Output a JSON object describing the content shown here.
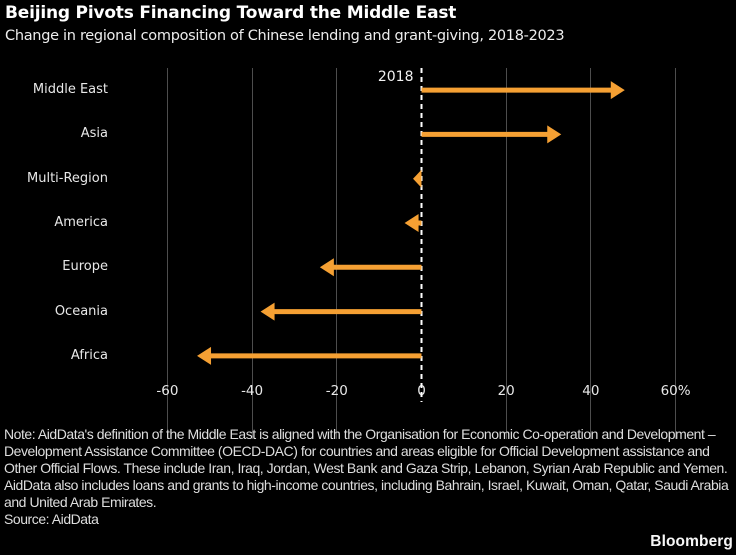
{
  "header": {
    "title": "Beijing Pivots Financing Toward the Middle East",
    "subtitle": "Change in regional composition of Chinese lending and grant-giving, 2018-2023"
  },
  "chart_data": {
    "type": "bar",
    "variant": "horizontal-arrows-from-baseline",
    "categories": [
      "Middle East",
      "Asia",
      "Multi-Region",
      "America",
      "Europe",
      "Oceania",
      "Africa"
    ],
    "values": [
      48,
      33,
      -2,
      -4,
      -24,
      -38,
      -53
    ],
    "unit": "percentage points",
    "baseline_label": "2018",
    "x_ticks": [
      -60,
      -40,
      -20,
      0,
      20,
      40,
      60
    ],
    "x_tick_labels": [
      "-60",
      "-40",
      "-20",
      "0",
      "20",
      "40",
      "60%"
    ],
    "xlim": [
      -72,
      72
    ],
    "grid": "vertical",
    "legend": "none",
    "colors": {
      "background": "#000000",
      "arrow": "#F5A033",
      "gridline": "#4d4d4d",
      "zero_line": "#ffffff",
      "text": "#e8e8e8"
    },
    "zero_line_style": "dashed"
  },
  "footer": {
    "note": "Note: AidData's definition of the Middle East is aligned with the Organisation for Economic Co-operation and Development – Development Assistance Committee (OECD-DAC) for countries and areas eligible for Official Development assistance and Other Official Flows. These include Iran, Iraq, Jordan, West Bank and Gaza Strip, Lebanon, Syrian Arab Republic and Yemen. AidData also includes loans and grants to high-income countries, including Bahrain, Israel, Kuwait, Oman, Qatar, Saudi Arabia and United Arab Emirates.",
    "source": "Source: AidData",
    "brand": "Bloomberg"
  }
}
